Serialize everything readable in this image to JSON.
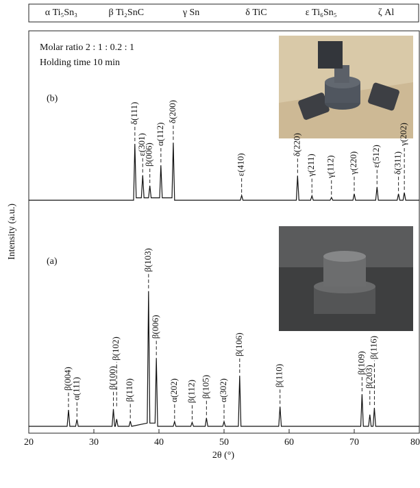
{
  "legend_items": [
    "α Ti₅Sn₃",
    "β Ti₂SnC",
    "γ Sn",
    "δ TiC",
    "ε Ti₆Sn₅",
    "ζ Al"
  ],
  "chart_data": {
    "type": "line",
    "annotations": [
      "Molar ratio 2 : 1 : 0.2 : 1",
      "Holding time 10 min"
    ],
    "x_label": "2θ (°)",
    "y_label": "Intensity (a.u.)",
    "xlim": [
      20,
      80
    ],
    "xticks": [
      20,
      30,
      40,
      50,
      60,
      70,
      80
    ],
    "ylim": [
      0,
      100
    ],
    "series": [
      {
        "name": "(a)",
        "color": "#111111",
        "x": [
          20,
          25.9,
          26.1,
          26.3,
          27.2,
          27.4,
          27.6,
          32.8,
          33.0,
          33.2,
          33.3,
          33.5,
          33.7,
          35.4,
          35.6,
          35.8,
          38.2,
          38.4,
          38.6,
          39.4,
          39.6,
          39.8,
          42.2,
          42.4,
          42.6,
          44.9,
          45.1,
          45.3,
          47.1,
          47.3,
          47.5,
          49.8,
          50.0,
          50.2,
          52.2,
          52.4,
          52.6,
          58.4,
          58.6,
          58.8,
          71.0,
          71.2,
          71.4,
          72.2,
          72.4,
          72.6,
          72.9,
          73.1,
          73.3,
          80
        ],
        "values": [
          1.7,
          1.7,
          5.8,
          1.7,
          1.7,
          3.4,
          1.7,
          1.7,
          6,
          1.7,
          1.7,
          3.5,
          1.7,
          1.7,
          3,
          1.7,
          2.5,
          35.3,
          2.5,
          2.5,
          18.7,
          1.7,
          1.7,
          2.9,
          1.7,
          1.7,
          2.7,
          1.7,
          1.7,
          3.8,
          1.7,
          1.7,
          2.9,
          1.7,
          1.7,
          14.3,
          1.7,
          1.7,
          6.6,
          1.7,
          1.7,
          9.7,
          1.7,
          1.7,
          4.6,
          1.7,
          1.7,
          6.3,
          1.7,
          1.7
        ],
        "peaks": [
          {
            "x": 26.1,
            "label": "β(004)"
          },
          {
            "x": 27.4,
            "label": "α(111)"
          },
          {
            "x": 33.0,
            "label": "β(100)"
          },
          {
            "x": 33.5,
            "label": "β(102)"
          },
          {
            "x": 35.6,
            "label": "β(110)"
          },
          {
            "x": 38.4,
            "label": "β(103)"
          },
          {
            "x": 39.6,
            "label": "β(006)"
          },
          {
            "x": 42.4,
            "label": "α(202)"
          },
          {
            "x": 45.1,
            "label": "β(112)"
          },
          {
            "x": 47.3,
            "label": "β(105)"
          },
          {
            "x": 50.0,
            "label": "α(302)"
          },
          {
            "x": 52.4,
            "label": "β(106)"
          },
          {
            "x": 58.6,
            "label": "β(110)"
          },
          {
            "x": 71.2,
            "label": "β(109)"
          },
          {
            "x": 72.4,
            "label": "β(203)"
          },
          {
            "x": 73.1,
            "label": "β(116)"
          }
        ]
      },
      {
        "name": "(b)",
        "color": "#111111",
        "x": [
          20,
          36.1,
          36.3,
          36.5,
          37.3,
          37.5,
          37.7,
          38.4,
          38.6,
          38.8,
          40.1,
          40.3,
          40.5,
          42.0,
          42.2,
          42.4,
          52.5,
          52.7,
          52.9,
          61.1,
          61.3,
          61.5,
          63.3,
          63.5,
          63.7,
          66.3,
          66.5,
          66.7,
          69.8,
          70.0,
          70.2,
          73.3,
          73.5,
          73.7,
          76.6,
          76.8,
          77.0,
          77.5,
          77.7,
          77.9,
          80
        ],
        "values": [
          57.9,
          57.9,
          71.9,
          58.5,
          58.5,
          64.1,
          58.5,
          58.5,
          61.5,
          58.5,
          58.5,
          66.6,
          58.5,
          58.5,
          72.2,
          57.9,
          57.9,
          59.1,
          57.9,
          57.9,
          64,
          57.9,
          57.9,
          59,
          57.9,
          57.9,
          58.6,
          57.9,
          57.9,
          59.5,
          57.9,
          57.9,
          61.2,
          57.9,
          57.9,
          59.5,
          57.9,
          57.9,
          59.8,
          57.9,
          57.9
        ],
        "peaks": [
          {
            "x": 36.3,
            "label": "δ(111)"
          },
          {
            "x": 37.5,
            "label": "ε(301)"
          },
          {
            "x": 38.6,
            "label": "β(006)"
          },
          {
            "x": 40.3,
            "label": "α(112)"
          },
          {
            "x": 42.2,
            "label": "δ(200)"
          },
          {
            "x": 52.7,
            "label": "ε(410)"
          },
          {
            "x": 61.3,
            "label": "δ(220)"
          },
          {
            "x": 63.5,
            "label": "γ(211)"
          },
          {
            "x": 66.5,
            "label": "γ(112)"
          },
          {
            "x": 70.0,
            "label": "γ(220)"
          },
          {
            "x": 73.5,
            "label": "ε(512)"
          },
          {
            "x": 76.8,
            "label": "δ(311)"
          },
          {
            "x": 77.7,
            "label": "γ(202)"
          }
        ]
      }
    ]
  }
}
